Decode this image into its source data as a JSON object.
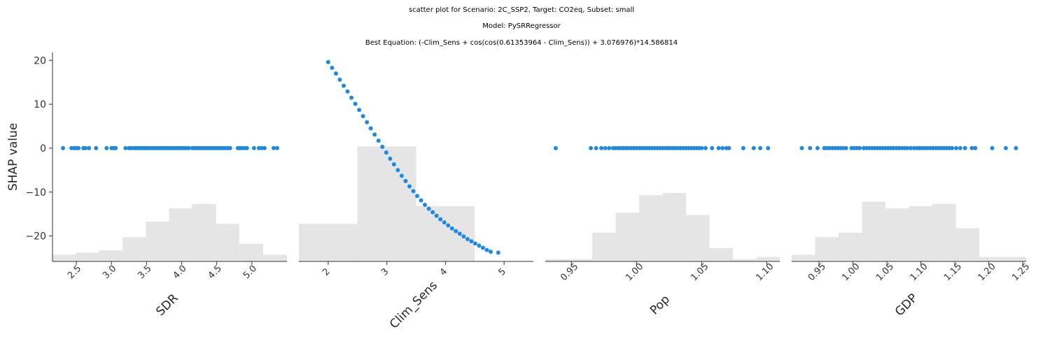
{
  "titles": {
    "line1": "scatter plot for Scenario: 2C_SSP2, Target: CO2eq, Subset: small",
    "line2": "Model: PySRRegressor",
    "line3": "Best Equation: (-Clim_Sens + cos(cos(0.61353964 - Clim_Sens)) + 3.076976)*14.586814"
  },
  "colors": {
    "points": "#1e88e5",
    "histogram": "#e5e5e5",
    "axis": "#333333"
  },
  "chart_data": {
    "type": "scatter",
    "ylabel": "SHAP value",
    "ylim": [
      -25.8,
      21.8
    ],
    "yticks": [
      20,
      10,
      0,
      -10,
      -20
    ],
    "ytick_labels": [
      "20",
      "10",
      "0",
      "−10",
      "−20"
    ],
    "panels": [
      {
        "xlabel": "SDR",
        "xlim": [
          2.16,
          5.5
        ],
        "xticks": [
          2.5,
          3.0,
          3.5,
          4.0,
          4.5,
          5.0
        ],
        "xtick_labels": [
          "2.5",
          "3.0",
          "3.5",
          "4.0",
          "4.5",
          "5.0"
        ],
        "tick_rotation": -45,
        "x": [
          2.31,
          2.43,
          2.47,
          2.5,
          2.53,
          2.6,
          2.63,
          2.68,
          2.78,
          2.93,
          3.0,
          3.03,
          3.06,
          3.2,
          3.25,
          3.28,
          3.32,
          3.35,
          3.38,
          3.41,
          3.44,
          3.47,
          3.5,
          3.53,
          3.56,
          3.59,
          3.62,
          3.65,
          3.68,
          3.71,
          3.74,
          3.77,
          3.8,
          3.83,
          3.86,
          3.89,
          3.92,
          3.95,
          3.98,
          4.01,
          4.04,
          4.07,
          4.1,
          4.15,
          4.18,
          4.21,
          4.24,
          4.27,
          4.3,
          4.33,
          4.36,
          4.39,
          4.42,
          4.45,
          4.48,
          4.51,
          4.54,
          4.57,
          4.6,
          4.63,
          4.66,
          4.69,
          4.8,
          4.83,
          4.86,
          4.9,
          4.93,
          5.03,
          5.1,
          5.14,
          5.18,
          5.31,
          5.36
        ],
        "y": [
          0,
          0,
          0,
          0,
          0,
          0,
          0,
          0,
          0,
          0,
          0,
          0,
          0,
          0,
          0,
          0,
          0,
          0,
          0,
          0,
          0,
          0,
          0,
          0,
          0,
          0,
          0,
          0,
          0,
          0,
          0,
          0,
          0,
          0,
          0,
          0,
          0,
          0,
          0,
          0,
          0,
          0,
          0,
          0,
          0,
          0,
          0,
          0,
          0,
          0,
          0,
          0,
          0,
          0,
          0,
          0,
          0,
          0,
          0,
          0,
          0,
          0,
          0,
          0,
          0,
          0,
          0,
          0,
          0,
          0,
          0,
          0,
          0
        ],
        "hist": {
          "edges": [
            2.16,
            2.49,
            2.82,
            3.16,
            3.49,
            3.82,
            4.15,
            4.49,
            4.82,
            5.16,
            5.5
          ],
          "counts": [
            3,
            4,
            5,
            11,
            18,
            24,
            26,
            17,
            8,
            3
          ]
        }
      },
      {
        "xlabel": "Clim_Sens",
        "xlim": [
          1.5,
          5.5
        ],
        "xticks": [
          2,
          3,
          4,
          5
        ],
        "xtick_labels": [
          "2",
          "3",
          "4",
          "5"
        ],
        "tick_rotation": -45,
        "x": [
          2.0,
          2.066,
          2.132,
          2.198,
          2.264,
          2.33,
          2.396,
          2.462,
          2.528,
          2.594,
          2.66,
          2.726,
          2.792,
          2.858,
          2.924,
          2.99,
          3.056,
          3.122,
          3.188,
          3.254,
          3.32,
          3.386,
          3.452,
          3.518,
          3.584,
          3.65,
          3.716,
          3.782,
          3.848,
          3.914,
          3.98,
          4.046,
          4.112,
          4.178,
          4.244,
          4.31,
          4.376,
          4.442,
          4.508,
          4.574,
          4.64,
          4.706,
          4.772,
          4.9
        ],
        "y": [
          19.6,
          18.3,
          17.0,
          15.6,
          14.2,
          12.9,
          11.5,
          10.1,
          8.7,
          7.3,
          5.9,
          4.5,
          3.1,
          1.7,
          0.3,
          -1.0,
          -2.4,
          -3.7,
          -5.0,
          -6.3,
          -7.5,
          -8.7,
          -9.8,
          -10.9,
          -11.9,
          -12.9,
          -13.8,
          -14.6,
          -15.4,
          -16.2,
          -16.9,
          -17.6,
          -18.3,
          -18.9,
          -19.5,
          -20.1,
          -20.7,
          -21.2,
          -21.7,
          -22.2,
          -22.7,
          -23.2,
          -23.6,
          -23.8
        ],
        "hist": {
          "edges": [
            1.5,
            2.5,
            3.5,
            4.5,
            5.5
          ],
          "counts": [
            17,
            52,
            25,
            0
          ]
        }
      },
      {
        "xlabel": "Pop",
        "xlim": [
          0.93,
          1.11
        ],
        "xticks": [
          0.95,
          1.0,
          1.05,
          1.1
        ],
        "xtick_labels": [
          "0.95",
          "1.00",
          "1.05",
          "1.10"
        ],
        "tick_rotation": -45,
        "x": [
          0.938,
          0.965,
          0.969,
          0.973,
          0.976,
          0.979,
          0.982,
          0.984,
          0.986,
          0.988,
          0.99,
          0.992,
          0.994,
          0.996,
          0.998,
          1.0,
          1.002,
          1.004,
          1.006,
          1.008,
          1.01,
          1.012,
          1.014,
          1.016,
          1.018,
          1.02,
          1.022,
          1.024,
          1.026,
          1.028,
          1.03,
          1.032,
          1.034,
          1.036,
          1.038,
          1.04,
          1.042,
          1.044,
          1.046,
          1.048,
          1.05,
          1.053,
          1.058,
          1.063,
          1.066,
          1.069,
          1.071,
          1.082,
          1.09,
          1.095,
          1.101
        ],
        "y": [
          0,
          0,
          0,
          0,
          0,
          0,
          0,
          0,
          0,
          0,
          0,
          0,
          0,
          0,
          0,
          0,
          0,
          0,
          0,
          0,
          0,
          0,
          0,
          0,
          0,
          0,
          0,
          0,
          0,
          0,
          0,
          0,
          0,
          0,
          0,
          0,
          0,
          0,
          0,
          0,
          0,
          0,
          0,
          0,
          0,
          0,
          0,
          0,
          0,
          0,
          0
        ],
        "hist": {
          "edges": [
            0.93,
            0.948,
            0.966,
            0.984,
            1.002,
            1.02,
            1.038,
            1.056,
            1.074,
            1.092,
            1.11
          ],
          "counts": [
            1,
            1,
            13,
            22,
            30,
            31,
            21,
            6,
            1,
            2
          ]
        }
      },
      {
        "xlabel": "GDP",
        "xlim": [
          0.91,
          1.255
        ],
        "xticks": [
          0.95,
          1.0,
          1.05,
          1.1,
          1.15,
          1.2,
          1.25
        ],
        "xtick_labels": [
          "0.95",
          "1.00",
          "1.05",
          "1.10",
          "1.15",
          "1.20",
          "1.25"
        ],
        "tick_rotation": -45,
        "x": [
          0.925,
          0.937,
          0.948,
          0.958,
          0.962,
          0.966,
          0.97,
          0.974,
          0.978,
          0.982,
          0.986,
          0.99,
          0.998,
          1.002,
          1.006,
          1.01,
          1.016,
          1.02,
          1.024,
          1.028,
          1.032,
          1.036,
          1.04,
          1.044,
          1.048,
          1.052,
          1.056,
          1.06,
          1.064,
          1.068,
          1.072,
          1.076,
          1.08,
          1.085,
          1.09,
          1.094,
          1.098,
          1.102,
          1.106,
          1.11,
          1.114,
          1.118,
          1.122,
          1.126,
          1.13,
          1.134,
          1.138,
          1.142,
          1.146,
          1.152,
          1.158,
          1.165,
          1.175,
          1.18,
          1.205,
          1.225,
          1.24
        ],
        "y": [
          0,
          0,
          0,
          0,
          0,
          0,
          0,
          0,
          0,
          0,
          0,
          0,
          0,
          0,
          0,
          0,
          0,
          0,
          0,
          0,
          0,
          0,
          0,
          0,
          0,
          0,
          0,
          0,
          0,
          0,
          0,
          0,
          0,
          0,
          0,
          0,
          0,
          0,
          0,
          0,
          0,
          0,
          0,
          0,
          0,
          0,
          0,
          0,
          0,
          0,
          0,
          0,
          0,
          0,
          0,
          0,
          0
        ],
        "hist": {
          "edges": [
            0.91,
            0.9445,
            0.979,
            1.0135,
            1.048,
            1.0825,
            1.117,
            1.1515,
            1.186,
            1.2205,
            1.255
          ],
          "counts": [
            3,
            11,
            13,
            27,
            24,
            25,
            26,
            15,
            2,
            2
          ]
        }
      }
    ]
  }
}
